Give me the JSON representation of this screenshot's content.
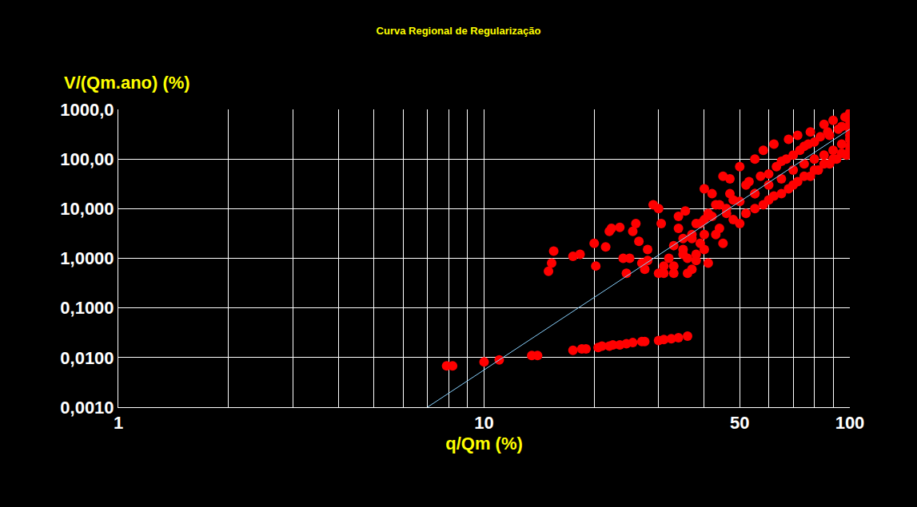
{
  "chart_data": {
    "type": "scatter",
    "title": "Curva Regional de Regularização",
    "xlabel": "q/Qm (%)",
    "ylabel": "V/(Qm.ano) (%)",
    "log": true,
    "grid": true,
    "xlim": [
      1,
      100
    ],
    "ylim": [
      0.001,
      1000
    ],
    "xticks": [
      1,
      10,
      50,
      100
    ],
    "yticks": [
      {
        "value": 0.001,
        "label": "0,0010"
      },
      {
        "value": 0.01,
        "label": "0,0100"
      },
      {
        "value": 0.1,
        "label": "0,1000"
      },
      {
        "value": 1,
        "label": "1,0000"
      },
      {
        "value": 10,
        "label": "10,000"
      },
      {
        "value": 100,
        "label": "100,00"
      },
      {
        "value": 1000,
        "label": "1000,0"
      }
    ],
    "series": [
      {
        "type": "scatter",
        "color": "#ff0000",
        "marker": "circle",
        "x": [
          7.9,
          8.2,
          10,
          11,
          13.5,
          14,
          17.5,
          18.5,
          19,
          20.5,
          21,
          22,
          22.5,
          23.5,
          24.5,
          25.5,
          27,
          27.5,
          30,
          31,
          32.5,
          34,
          36,
          15,
          15.3,
          15.5,
          17.5,
          18.3,
          20,
          20.2,
          21.5,
          22,
          22.3,
          23.5,
          24,
          24.5,
          25,
          25.5,
          26,
          26.5,
          27,
          27.5,
          28,
          28,
          29,
          30,
          30,
          30.5,
          31,
          32,
          33,
          33,
          34,
          34,
          35,
          35.5,
          35,
          36,
          37,
          37,
          38,
          38,
          40,
          39,
          40,
          41,
          42,
          43,
          43,
          45,
          46,
          47,
          48,
          50,
          52,
          55,
          55,
          58,
          60,
          62,
          65,
          68,
          70,
          72,
          75,
          78,
          80,
          85,
          88,
          90,
          95,
          100,
          100,
          100,
          100,
          100,
          98,
          95,
          92,
          90,
          88,
          85,
          82,
          80,
          78,
          75,
          72,
          70,
          68,
          65,
          62,
          60,
          58,
          55,
          52,
          50,
          48,
          46,
          44,
          42,
          40,
          40,
          38,
          45,
          36,
          50,
          55,
          60,
          65,
          70,
          75,
          80,
          85,
          90,
          95,
          100,
          100,
          100,
          97,
          93,
          87,
          83,
          77,
          73,
          67,
          63,
          57,
          53,
          47,
          44,
          41,
          39,
          37,
          35,
          33,
          31
        ],
        "values": [
          0.0068,
          0.0068,
          0.0082,
          0.009,
          0.011,
          0.011,
          0.014,
          0.015,
          0.015,
          0.016,
          0.017,
          0.017,
          0.018,
          0.018,
          0.019,
          0.02,
          0.021,
          0.021,
          0.022,
          0.023,
          0.024,
          0.025,
          0.027,
          0.55,
          0.8,
          1.4,
          1.1,
          1.2,
          2.0,
          0.7,
          1.7,
          3.5,
          4.0,
          4.2,
          1.0,
          0.5,
          1.0,
          3.5,
          5.0,
          2.2,
          0.8,
          0.6,
          1.5,
          0.9,
          12,
          10,
          0.5,
          5,
          0.7,
          1.0,
          1.8,
          0.5,
          4,
          7,
          1.5,
          9,
          2.5,
          1.0,
          3,
          0.6,
          5,
          1.2,
          25,
          2,
          6,
          0.8,
          20,
          12,
          3,
          45,
          8,
          40,
          15,
          70,
          30,
          100,
          20,
          150,
          50,
          200,
          90,
          250,
          120,
          300,
          180,
          350,
          220,
          500,
          300,
          600,
          450,
          850,
          600,
          400,
          250,
          150,
          120,
          200,
          100,
          150,
          80,
          120,
          60,
          100,
          45,
          80,
          35,
          60,
          25,
          40,
          18,
          30,
          12,
          20,
          8,
          14,
          6,
          10,
          4,
          7,
          3,
          1.5,
          0.9,
          2,
          0.5,
          5,
          10,
          15,
          20,
          30,
          45,
          60,
          80,
          100,
          130,
          180,
          300,
          500,
          700,
          400,
          350,
          280,
          200,
          150,
          100,
          70,
          45,
          35,
          20,
          12,
          8,
          5,
          2.5,
          1.2,
          0.7,
          0.5
        ]
      },
      {
        "type": "line",
        "color": "#87cefa",
        "line_style": "solid",
        "x": [
          7,
          100
        ],
        "values": [
          0.001,
          400
        ]
      }
    ]
  }
}
